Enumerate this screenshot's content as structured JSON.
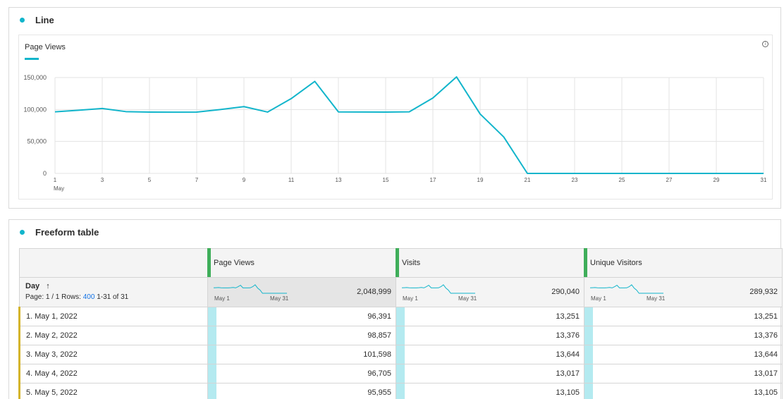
{
  "line_panel": {
    "title": "Line",
    "legend_label": "Page Views",
    "info_icon": "info-icon",
    "accent_color": "#12b5cb"
  },
  "chart_data": {
    "type": "line",
    "series": [
      {
        "name": "Page Views",
        "values": [
          96391,
          98857,
          101598,
          96705,
          95955,
          95800,
          95900,
          100000,
          104500,
          96000,
          117000,
          144000,
          96200,
          96100,
          95900,
          96400,
          118000,
          151000,
          93000,
          57000,
          0,
          0,
          0,
          0,
          0,
          0,
          0,
          0,
          0,
          0,
          0
        ]
      }
    ],
    "x": [
      1,
      2,
      3,
      4,
      5,
      6,
      7,
      8,
      9,
      10,
      11,
      12,
      13,
      14,
      15,
      16,
      17,
      18,
      19,
      20,
      21,
      22,
      23,
      24,
      25,
      26,
      27,
      28,
      29,
      30,
      31
    ],
    "x_tick_labels": [
      "1",
      "3",
      "5",
      "7",
      "9",
      "11",
      "13",
      "15",
      "17",
      "19",
      "21",
      "23",
      "25",
      "27",
      "29",
      "31"
    ],
    "x_sub_label": "May",
    "y_ticks": [
      "0",
      "50,000",
      "100,000",
      "150,000"
    ],
    "ylim": [
      0,
      150000
    ],
    "grid": true
  },
  "table_panel": {
    "title": "Freeform table",
    "dimension": {
      "name": "Day",
      "sort_arrow": "↑",
      "page_text": "Page: 1 / 1  Rows:",
      "rows_value": "400",
      "range_text": "1-31 of 31"
    },
    "columns": [
      {
        "label": "Page Views",
        "total": "2,048,999",
        "spark_start": "May 1",
        "spark_end": "May 31"
      },
      {
        "label": "Visits",
        "total": "290,040",
        "spark_start": "May 1",
        "spark_end": "May 31"
      },
      {
        "label": "Unique Visitors",
        "total": "289,932",
        "spark_start": "May 1",
        "spark_end": "May 31"
      }
    ],
    "rows": [
      {
        "label": "1.  May 1, 2022",
        "values": [
          "96,391",
          "13,251",
          "13,251"
        ]
      },
      {
        "label": "2.  May 2, 2022",
        "values": [
          "98,857",
          "13,376",
          "13,376"
        ]
      },
      {
        "label": "3.  May 3, 2022",
        "values": [
          "101,598",
          "13,644",
          "13,644"
        ]
      },
      {
        "label": "4.  May 4, 2022",
        "values": [
          "96,705",
          "13,017",
          "13,017"
        ]
      },
      {
        "label": "5.  May 5, 2022",
        "values": [
          "95,955",
          "13,105",
          "13,105"
        ]
      }
    ],
    "bar_color": "#b4eaf0",
    "column_marker_color": "#3fae5a",
    "row_marker_color": "#d4b42c"
  }
}
